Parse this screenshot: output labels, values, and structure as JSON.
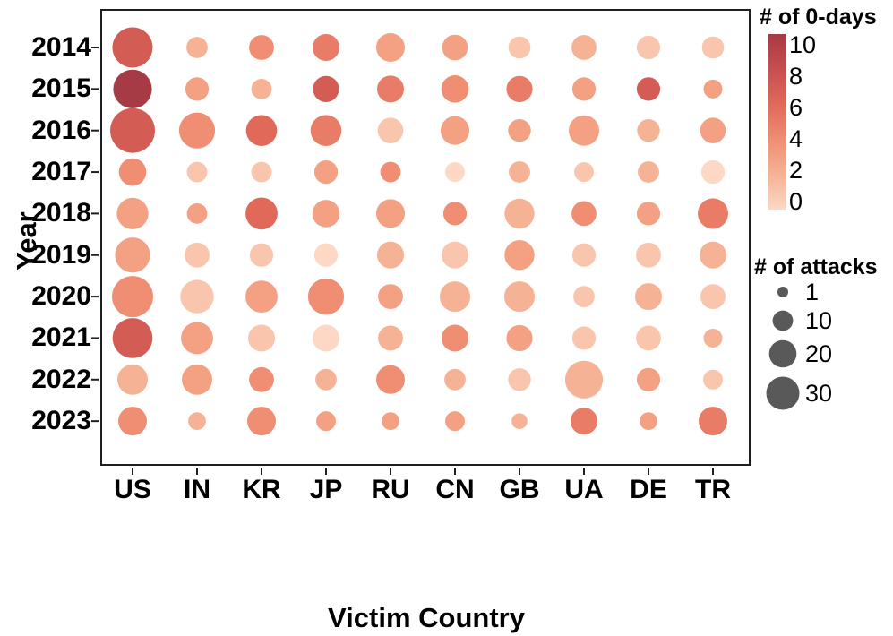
{
  "chart_data": {
    "type": "bubble",
    "title": "",
    "xlabel": "Victim Country",
    "ylabel": "Year",
    "x_categories": [
      "US",
      "IN",
      "KR",
      "JP",
      "RU",
      "CN",
      "GB",
      "UA",
      "DE",
      "TR"
    ],
    "y_categories": [
      "2014",
      "2015",
      "2016",
      "2017",
      "2018",
      "2019",
      "2020",
      "2021",
      "2022",
      "2023"
    ],
    "grid": false,
    "attacks": {
      "2014": [
        46,
        11,
        16,
        19,
        22,
        17,
        12,
        16,
        14,
        12
      ],
      "2015": [
        42,
        14,
        10,
        18,
        19,
        20,
        18,
        14,
        14,
        8
      ],
      "2016": [
        57,
        36,
        26,
        26,
        17,
        22,
        13,
        25,
        13,
        17
      ],
      "2017": [
        20,
        10,
        10,
        14,
        10,
        9,
        11,
        9,
        11,
        14
      ],
      "2018": [
        27,
        10,
        28,
        20,
        22,
        14,
        24,
        16,
        14,
        25
      ],
      "2019": [
        34,
        16,
        14,
        14,
        19,
        19,
        24,
        14,
        16,
        19
      ],
      "2020": [
        48,
        31,
        28,
        36,
        16,
        25,
        25,
        11,
        19,
        16
      ],
      "2021": [
        45,
        28,
        19,
        19,
        16,
        19,
        18,
        14,
        16,
        8
      ],
      "2022": [
        25,
        25,
        16,
        11,
        22,
        11,
        13,
        40,
        14,
        9
      ],
      "2023": [
        22,
        7,
        22,
        9,
        7,
        9,
        5,
        19,
        7,
        22
      ]
    },
    "zero_days": {
      "2014": [
        7,
        2,
        4,
        5,
        3,
        3,
        1,
        2,
        1,
        1
      ],
      "2015": [
        10,
        3,
        2,
        7,
        5,
        4,
        5,
        3,
        7,
        3
      ],
      "2016": [
        7,
        4,
        6,
        5,
        1,
        3,
        3,
        3,
        2,
        3
      ],
      "2017": [
        4,
        1,
        1,
        3,
        4,
        0,
        2,
        1,
        2,
        0
      ],
      "2018": [
        3,
        3,
        6,
        3,
        3,
        4,
        2,
        4,
        3,
        5
      ],
      "2019": [
        3,
        1,
        1,
        0,
        2,
        1,
        3,
        1,
        1,
        2
      ],
      "2020": [
        4,
        1,
        3,
        4,
        3,
        2,
        2,
        1,
        2,
        1
      ],
      "2021": [
        7,
        3,
        1,
        0,
        2,
        4,
        3,
        1,
        1,
        2
      ],
      "2022": [
        2,
        3,
        4,
        2,
        4,
        2,
        1,
        2,
        3,
        1
      ],
      "2023": [
        4,
        2,
        4,
        3,
        3,
        3,
        2,
        5,
        3,
        5
      ]
    },
    "color_legend": {
      "title": "# of 0-days",
      "ticks": [
        10,
        8,
        6,
        4,
        2,
        0
      ],
      "range": [
        0,
        10
      ],
      "colormap_anchors": [
        {
          "value": 0,
          "color": "#fcd8c5"
        },
        {
          "value": 2,
          "color": "#f6b294"
        },
        {
          "value": 4,
          "color": "#ef8e72"
        },
        {
          "value": 6,
          "color": "#e0695a"
        },
        {
          "value": 8,
          "color": "#c64f4e"
        },
        {
          "value": 10,
          "color": "#a63a45"
        }
      ],
      "position": "top-right"
    },
    "size_legend": {
      "title": "# of attacks",
      "sizes": [
        1,
        10,
        20,
        30
      ],
      "swatch_color": "#595959",
      "position": "right"
    }
  }
}
